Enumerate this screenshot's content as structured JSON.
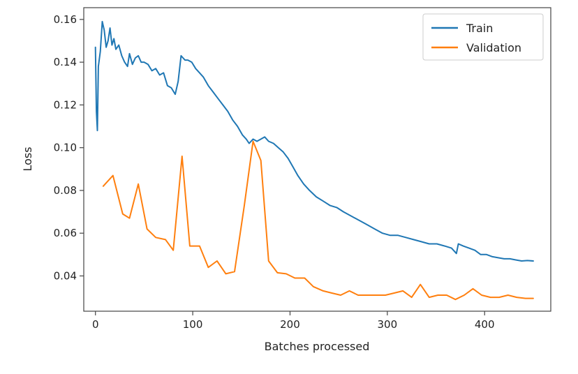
{
  "chart_data": {
    "type": "line",
    "title": "",
    "xlabel": "Batches processed",
    "ylabel": "Loss",
    "xlim": [
      -12,
      468
    ],
    "ylim": [
      0.0235,
      0.1655
    ],
    "xticks": [
      0,
      100,
      200,
      300,
      400
    ],
    "yticks": [
      0.04,
      0.06,
      0.08,
      0.1,
      0.12,
      0.14,
      0.16
    ],
    "xtick_labels": [
      "0",
      "100",
      "200",
      "300",
      "400"
    ],
    "ytick_labels": [
      "0.04",
      "0.06",
      "0.08",
      "0.10",
      "0.12",
      "0.14",
      "0.16"
    ],
    "grid": false,
    "legend_position": "top-right",
    "series": [
      {
        "name": "Train",
        "color": "#1f77b4",
        "x": [
          0,
          1,
          2,
          3,
          5,
          7,
          9,
          11,
          13,
          15,
          17,
          19,
          21,
          24,
          27,
          30,
          33,
          35,
          38,
          41,
          44,
          47,
          50,
          54,
          58,
          62,
          66,
          70,
          74,
          78,
          82,
          85,
          88,
          90,
          92,
          95,
          99,
          103,
          107,
          111,
          116,
          121,
          126,
          131,
          136,
          141,
          146,
          151,
          155,
          158,
          162,
          166,
          170,
          174,
          178,
          183,
          188,
          193,
          198,
          203,
          208,
          214,
          220,
          227,
          234,
          241,
          248,
          255,
          263,
          271,
          279,
          287,
          295,
          303,
          311,
          319,
          327,
          335,
          343,
          351,
          359,
          366,
          371,
          373,
          378,
          384,
          390,
          396,
          402,
          408,
          414,
          420,
          426,
          432,
          438,
          444,
          450
        ],
        "y": [
          0.147,
          0.117,
          0.108,
          0.138,
          0.145,
          0.159,
          0.155,
          0.147,
          0.15,
          0.156,
          0.148,
          0.151,
          0.146,
          0.148,
          0.143,
          0.14,
          0.138,
          0.144,
          0.139,
          0.142,
          0.143,
          0.14,
          0.14,
          0.139,
          0.136,
          0.137,
          0.134,
          0.135,
          0.129,
          0.128,
          0.125,
          0.131,
          0.143,
          0.142,
          0.141,
          0.141,
          0.14,
          0.137,
          0.135,
          0.133,
          0.129,
          0.126,
          0.123,
          0.12,
          0.117,
          0.113,
          0.11,
          0.106,
          0.104,
          0.102,
          0.104,
          0.103,
          0.104,
          0.105,
          0.103,
          0.102,
          0.1,
          0.098,
          0.095,
          0.091,
          0.087,
          0.083,
          0.08,
          0.077,
          0.075,
          0.073,
          0.072,
          0.07,
          0.068,
          0.066,
          0.064,
          0.062,
          0.06,
          0.059,
          0.059,
          0.058,
          0.057,
          0.056,
          0.055,
          0.055,
          0.054,
          0.053,
          0.0505,
          0.055,
          0.054,
          0.053,
          0.052,
          0.05,
          0.05,
          0.049,
          0.0485,
          0.048,
          0.048,
          0.0475,
          0.047,
          0.0472,
          0.047
        ]
      },
      {
        "name": "Validation",
        "color": "#ff7f0e",
        "x": [
          8,
          18,
          28,
          35,
          44,
          53,
          62,
          72,
          80,
          89,
          97,
          107,
          116,
          125,
          134,
          143,
          153,
          162,
          170,
          178,
          187,
          196,
          205,
          215,
          224,
          234,
          243,
          252,
          261,
          270,
          279,
          288,
          298,
          307,
          316,
          325,
          334,
          343,
          352,
          361,
          370,
          379,
          388,
          397,
          406,
          415,
          424,
          433,
          442,
          450
        ],
        "y": [
          0.082,
          0.087,
          0.069,
          0.067,
          0.083,
          0.062,
          0.058,
          0.057,
          0.052,
          0.096,
          0.054,
          0.054,
          0.044,
          0.047,
          0.041,
          0.042,
          0.073,
          0.103,
          0.094,
          0.047,
          0.0415,
          0.041,
          0.039,
          0.039,
          0.035,
          0.033,
          0.032,
          0.031,
          0.033,
          0.031,
          0.031,
          0.031,
          0.031,
          0.032,
          0.033,
          0.03,
          0.036,
          0.03,
          0.031,
          0.031,
          0.029,
          0.031,
          0.034,
          0.031,
          0.03,
          0.03,
          0.031,
          0.03,
          0.0295,
          0.0295
        ]
      }
    ]
  }
}
